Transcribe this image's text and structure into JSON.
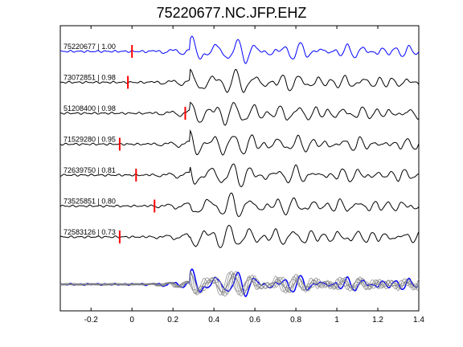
{
  "title": "75220677.NC.JFP.EHZ",
  "chart_data": {
    "type": "line",
    "title": "75220677.NC.JFP.EHZ",
    "xlim": [
      -0.35,
      1.4
    ],
    "xticks": [
      -0.2,
      0,
      0.2,
      0.4,
      0.6,
      0.8,
      1,
      1.2,
      1.4
    ],
    "xtick_labels": [
      "-0.2",
      "0",
      "0.2",
      "0.4",
      "0.6",
      "0.8",
      "1",
      "1.2",
      "1.4"
    ],
    "grid": false,
    "series": [
      {
        "name": "75220677 | 1.00",
        "color": "#0000ff",
        "pick": 0.0
      },
      {
        "name": "73072851 | 0.98",
        "color": "#000000",
        "pick": -0.02
      },
      {
        "name": "51208400 | 0.98",
        "color": "#000000",
        "pick": 0.26
      },
      {
        "name": "71529280 | 0.95",
        "color": "#000000",
        "pick": -0.06
      },
      {
        "name": "72639750 | 0.81",
        "color": "#000000",
        "pick": 0.02
      },
      {
        "name": "73525851 | 0.80",
        "color": "#000000",
        "pick": 0.11
      },
      {
        "name": "72583126 | 0.73",
        "color": "#000000",
        "pick": -0.06
      }
    ],
    "pick_color": "#ff0000",
    "stack_color": "#808080"
  }
}
